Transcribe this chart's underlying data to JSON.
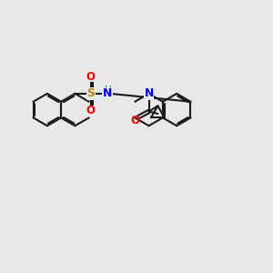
{
  "background_color": "#e8e8e8",
  "bond_color": "#1a1a1a",
  "bond_width": 1.5,
  "figsize": [
    3.0,
    3.0
  ],
  "dpi": 100,
  "xlim": [
    0,
    12
  ],
  "ylim": [
    0,
    12
  ]
}
